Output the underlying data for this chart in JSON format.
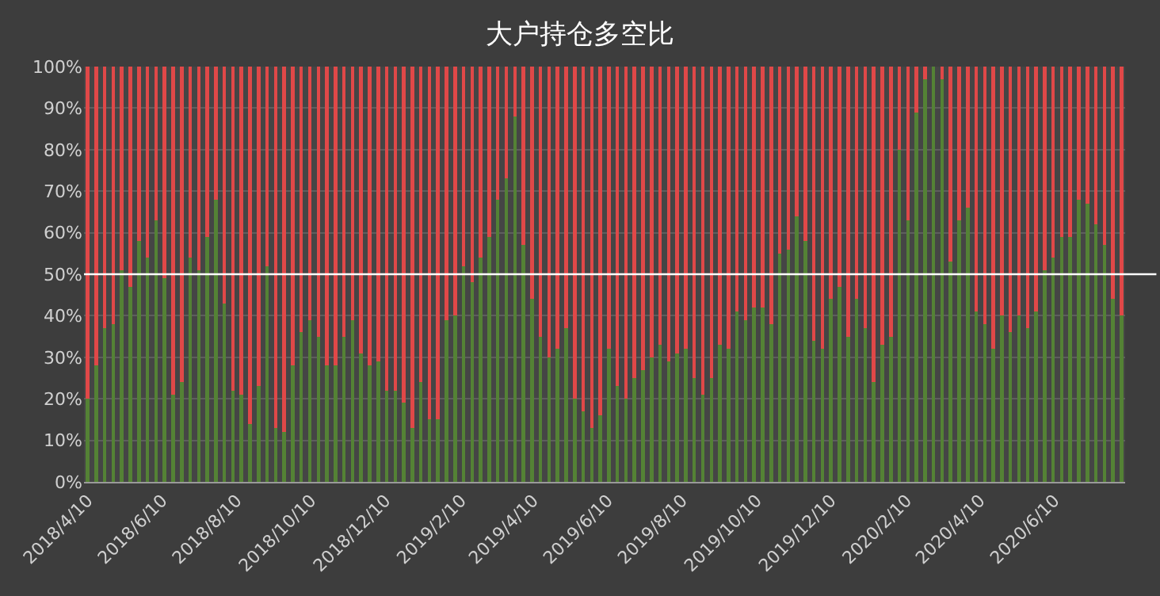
{
  "chart_data": {
    "type": "bar",
    "title": "大户持仓多空比",
    "stacked": true,
    "grid": "y",
    "x": [
      "2018-04-10",
      "2018-04-17",
      "2018-04-24",
      "2018-05-01",
      "2018-05-08",
      "2018-05-15",
      "2018-05-22",
      "2018-05-29",
      "2018-06-05",
      "2018-06-12",
      "2018-06-19",
      "2018-06-26",
      "2018-07-03",
      "2018-07-10",
      "2018-07-17",
      "2018-07-24",
      "2018-07-31",
      "2018-08-07",
      "2018-08-14",
      "2018-08-21",
      "2018-08-28",
      "2018-09-04",
      "2018-09-11",
      "2018-09-18",
      "2018-09-25",
      "2018-10-02",
      "2018-10-09",
      "2018-10-16",
      "2018-10-23",
      "2018-10-30",
      "2018-11-06",
      "2018-11-13",
      "2018-11-20",
      "2018-11-27",
      "2018-12-04",
      "2018-12-11",
      "2018-12-18",
      "2018-12-25",
      "2019-01-01",
      "2019-01-08",
      "2019-01-15",
      "2019-01-22",
      "2019-01-29",
      "2019-02-05",
      "2019-02-12",
      "2019-02-19",
      "2019-02-26",
      "2019-03-05",
      "2019-03-12",
      "2019-03-19",
      "2019-03-26",
      "2019-04-02",
      "2019-04-09",
      "2019-04-16",
      "2019-04-23",
      "2019-04-30",
      "2019-05-07",
      "2019-05-14",
      "2019-05-21",
      "2019-05-28",
      "2019-06-04",
      "2019-06-11",
      "2019-06-18",
      "2019-06-25",
      "2019-07-02",
      "2019-07-09",
      "2019-07-16",
      "2019-07-23",
      "2019-07-30",
      "2019-08-06",
      "2019-08-13",
      "2019-08-20",
      "2019-08-27",
      "2019-09-03",
      "2019-09-10",
      "2019-09-17",
      "2019-09-24",
      "2019-10-01",
      "2019-10-08",
      "2019-10-15",
      "2019-10-22",
      "2019-10-29",
      "2019-11-05",
      "2019-11-12",
      "2019-11-19",
      "2019-11-26",
      "2019-12-03",
      "2019-12-10",
      "2019-12-17",
      "2019-12-24",
      "2019-12-31",
      "2020-01-07",
      "2020-01-14",
      "2020-01-21",
      "2020-01-28",
      "2020-02-04",
      "2020-02-11",
      "2020-02-18",
      "2020-02-25",
      "2020-03-03",
      "2020-03-10",
      "2020-03-17",
      "2020-03-24",
      "2020-03-31",
      "2020-04-07",
      "2020-04-14",
      "2020-04-21",
      "2020-04-28",
      "2020-05-05",
      "2020-05-12",
      "2020-05-19",
      "2020-05-26",
      "2020-06-02",
      "2020-06-09",
      "2020-06-16",
      "2020-06-23",
      "2020-06-30",
      "2020-07-07",
      "2020-07-14",
      "2020-07-21",
      "2020-07-28",
      "2020-08-04"
    ],
    "series": [
      {
        "color": "#548235",
        "values": [
          20,
          28,
          37,
          38,
          51,
          47,
          58,
          54,
          63,
          49,
          21,
          24,
          54,
          51,
          59,
          68,
          43,
          22,
          21,
          14,
          23,
          52,
          13,
          12,
          28,
          36,
          39,
          35,
          28,
          28,
          35,
          39,
          31,
          28,
          29,
          22,
          22,
          19,
          13,
          24,
          15,
          15,
          39,
          40,
          52,
          48,
          54,
          59,
          68,
          73,
          88,
          57,
          44,
          35,
          30,
          32,
          37,
          20,
          17,
          13,
          16,
          32,
          23,
          20,
          25,
          27,
          30,
          33,
          29,
          31,
          32,
          25,
          21,
          25,
          33,
          32,
          41,
          39,
          42,
          42,
          38,
          55,
          56,
          64,
          58,
          34,
          32,
          44,
          47,
          35,
          44,
          37,
          24,
          33,
          35,
          80,
          63,
          89,
          97,
          100,
          97,
          53,
          63,
          66,
          41,
          38,
          32,
          40,
          36,
          40,
          37,
          41,
          51,
          54,
          59,
          59,
          68,
          67,
          62,
          57,
          44,
          40
        ]
      },
      {
        "color": "#e04848",
        "values": [
          80,
          72,
          63,
          62,
          49,
          53,
          42,
          46,
          37,
          51,
          79,
          76,
          46,
          49,
          41,
          32,
          57,
          78,
          79,
          86,
          77,
          48,
          87,
          88,
          72,
          64,
          61,
          65,
          72,
          72,
          65,
          61,
          69,
          72,
          71,
          78,
          78,
          81,
          87,
          76,
          85,
          85,
          61,
          60,
          48,
          52,
          46,
          41,
          32,
          27,
          12,
          43,
          56,
          65,
          70,
          68,
          63,
          80,
          83,
          87,
          84,
          68,
          77,
          80,
          75,
          73,
          70,
          67,
          71,
          69,
          68,
          75,
          79,
          75,
          67,
          68,
          59,
          61,
          58,
          58,
          62,
          45,
          44,
          36,
          42,
          66,
          68,
          56,
          53,
          65,
          56,
          63,
          76,
          67,
          65,
          20,
          37,
          11,
          3,
          0,
          3,
          47,
          37,
          34,
          59,
          62,
          68,
          60,
          64,
          60,
          63,
          59,
          49,
          46,
          41,
          41,
          32,
          33,
          38,
          43,
          56,
          60
        ]
      }
    ],
    "ylim": [
      0,
      100
    ],
    "yticks": [
      {
        "value": 0,
        "label": "0%"
      },
      {
        "value": 10,
        "label": "10%"
      },
      {
        "value": 20,
        "label": "20%"
      },
      {
        "value": 30,
        "label": "30%"
      },
      {
        "value": 40,
        "label": "40%"
      },
      {
        "value": 50,
        "label": "50%"
      },
      {
        "value": 60,
        "label": "60%"
      },
      {
        "value": 70,
        "label": "70%"
      },
      {
        "value": 80,
        "label": "80%"
      },
      {
        "value": 90,
        "label": "90%"
      },
      {
        "value": 100,
        "label": "100%"
      }
    ],
    "xlim": [
      "2018-04-07",
      "2020-08-07"
    ],
    "xticks": [
      {
        "value": "2018-04-10",
        "label": "2018/4/10"
      },
      {
        "value": "2018-06-10",
        "label": "2018/6/10"
      },
      {
        "value": "2018-08-10",
        "label": "2018/8/10"
      },
      {
        "value": "2018-10-10",
        "label": "2018/10/10"
      },
      {
        "value": "2018-12-10",
        "label": "2018/12/10"
      },
      {
        "value": "2019-02-10",
        "label": "2019/2/10"
      },
      {
        "value": "2019-04-10",
        "label": "2019/4/10"
      },
      {
        "value": "2019-06-10",
        "label": "2019/6/10"
      },
      {
        "value": "2019-08-10",
        "label": "2019/8/10"
      },
      {
        "value": "2019-10-10",
        "label": "2019/10/10"
      },
      {
        "value": "2019-12-10",
        "label": "2019/12/10"
      },
      {
        "value": "2020-02-10",
        "label": "2020/2/10"
      },
      {
        "value": "2020-04-10",
        "label": "2020/4/10"
      },
      {
        "value": "2020-06-10",
        "label": "2020/6/10"
      }
    ],
    "ref_lines": [
      {
        "axis": "y",
        "value": 50,
        "color": "#ffffff"
      }
    ]
  }
}
